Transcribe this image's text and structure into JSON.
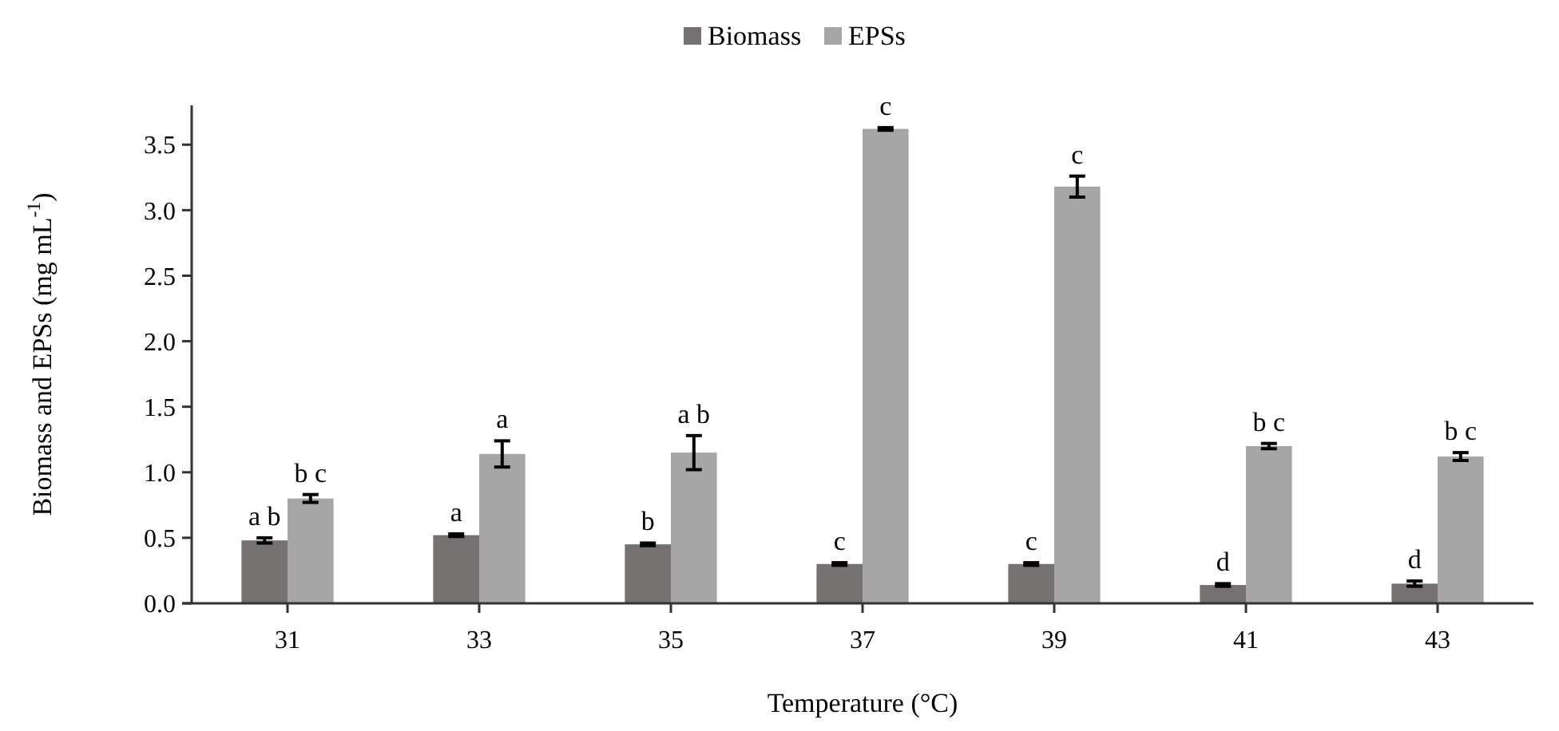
{
  "chart_data": {
    "type": "bar",
    "xlabel": "Temperature (°C)",
    "ylabel": "Biomass and EPSs (mg mL$^{-1}$)",
    "categories": [
      "31",
      "33",
      "35",
      "37",
      "39",
      "41",
      "43"
    ],
    "series": [
      {
        "name": "Biomass",
        "color": "#757170",
        "values": [
          0.48,
          0.52,
          0.45,
          0.3,
          0.3,
          0.14,
          0.15
        ],
        "errors": [
          0.02,
          0.01,
          0.01,
          0.01,
          0.01,
          0.01,
          0.02
        ],
        "value_labels": [
          "a b",
          "a",
          "b",
          "c",
          "c",
          "d",
          "d"
        ]
      },
      {
        "name": "EPSs",
        "color": "#a6a6a6",
        "values": [
          0.8,
          1.14,
          1.15,
          3.62,
          3.18,
          1.2,
          1.12
        ],
        "errors": [
          0.03,
          0.1,
          0.13,
          0.01,
          0.08,
          0.02,
          0.03
        ],
        "value_labels": [
          "b c",
          "a",
          "a b",
          "c",
          "c",
          "b c",
          "b c"
        ]
      }
    ],
    "ylim": [
      0,
      3.8
    ],
    "yticks": [
      {
        "value": 0,
        "label": "0.0"
      },
      {
        "value": 0.5,
        "label": "0.5"
      },
      {
        "value": 1,
        "label": "1.0"
      },
      {
        "value": 1.5,
        "label": "1.5"
      },
      {
        "value": 2,
        "label": "2.0"
      },
      {
        "value": 2.5,
        "label": "2.5"
      },
      {
        "value": 3,
        "label": "3.0"
      },
      {
        "value": 3.5,
        "label": "3.5"
      }
    ],
    "grid": false,
    "legend": "top"
  }
}
